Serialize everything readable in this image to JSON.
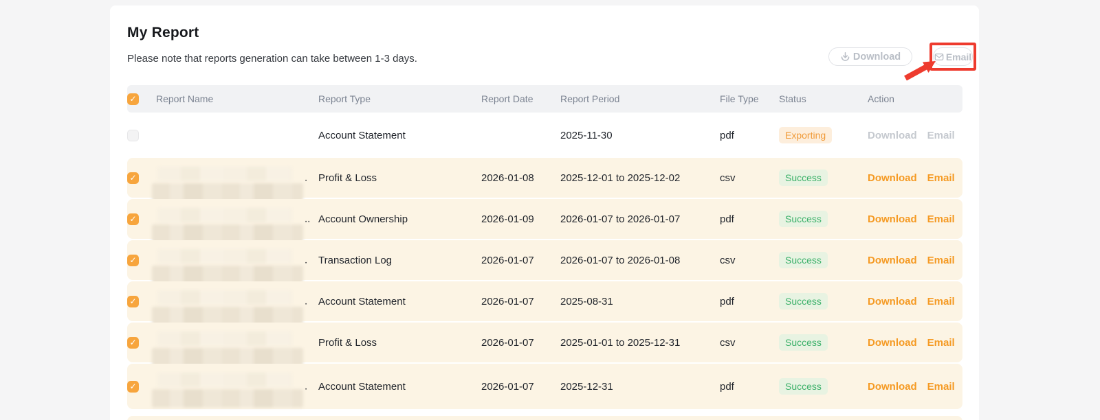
{
  "page": {
    "title": "My Report",
    "subtitle": "Please note that reports generation can take between 1-3 days."
  },
  "toolbar": {
    "download_label": "Download",
    "email_label": "Email",
    "download_icon": "download-tray-icon",
    "email_icon": "envelope-icon",
    "annotation": "red box and red arrow highlighting the Email button"
  },
  "table": {
    "columns": [
      "Report Name",
      "Report Type",
      "Report Date",
      "Report Period",
      "File Type",
      "Status",
      "Action"
    ],
    "action_labels": {
      "download": "Download",
      "email": "Email"
    },
    "header_checkbox_checked": true,
    "rows": [
      {
        "checked": false,
        "selected": false,
        "name_redacted": false,
        "name_suffix": "",
        "type": "Account Statement",
        "date": "",
        "period": "2025-11-30",
        "file_type": "pdf",
        "status": "Exporting",
        "status_kind": "exporting",
        "actions_enabled": false
      },
      {
        "checked": true,
        "selected": true,
        "name_redacted": true,
        "name_suffix": ".",
        "type": "Profit & Loss",
        "date": "2026-01-08",
        "period": "2025-12-01 to 2025-12-02",
        "file_type": "csv",
        "status": "Success",
        "status_kind": "success",
        "actions_enabled": true
      },
      {
        "checked": true,
        "selected": true,
        "name_redacted": true,
        "name_suffix": "..",
        "type": "Account Ownership",
        "date": "2026-01-09",
        "period": "2026-01-07 to 2026-01-07",
        "file_type": "pdf",
        "status": "Success",
        "status_kind": "success",
        "actions_enabled": true
      },
      {
        "checked": true,
        "selected": true,
        "name_redacted": true,
        "name_suffix": ".",
        "type": "Transaction Log",
        "date": "2026-01-07",
        "period": "2026-01-07 to 2026-01-08",
        "file_type": "csv",
        "status": "Success",
        "status_kind": "success",
        "actions_enabled": true
      },
      {
        "checked": true,
        "selected": true,
        "name_redacted": true,
        "name_suffix": ".",
        "type": "Account Statement",
        "date": "2026-01-07",
        "period": "2025-08-31",
        "file_type": "pdf",
        "status": "Success",
        "status_kind": "success",
        "actions_enabled": true
      },
      {
        "checked": true,
        "selected": true,
        "name_redacted": true,
        "name_suffix": "",
        "type": "Profit & Loss",
        "date": "2026-01-07",
        "period": "2025-01-01 to 2025-12-31",
        "file_type": "csv",
        "status": "Success",
        "status_kind": "success",
        "actions_enabled": true
      },
      {
        "checked": true,
        "selected": true,
        "name_redacted": true,
        "name_suffix": ".",
        "type": "Account Statement",
        "date": "2026-01-07",
        "period": "2025-12-31",
        "file_type": "pdf",
        "status": "Success",
        "status_kind": "success",
        "actions_enabled": true
      }
    ]
  },
  "colors": {
    "accent_orange": "#F59A23",
    "checkbox_orange": "#F7A53D",
    "success_green": "#3CB16A",
    "success_bg": "#E8F3E2",
    "exporting_orange": "#F09A38",
    "exporting_bg": "#FDEEDC",
    "selected_row_bg": "#FCF4E4",
    "annotation_red": "#EE3B2E",
    "disabled_gray": "#C5C9CF"
  }
}
